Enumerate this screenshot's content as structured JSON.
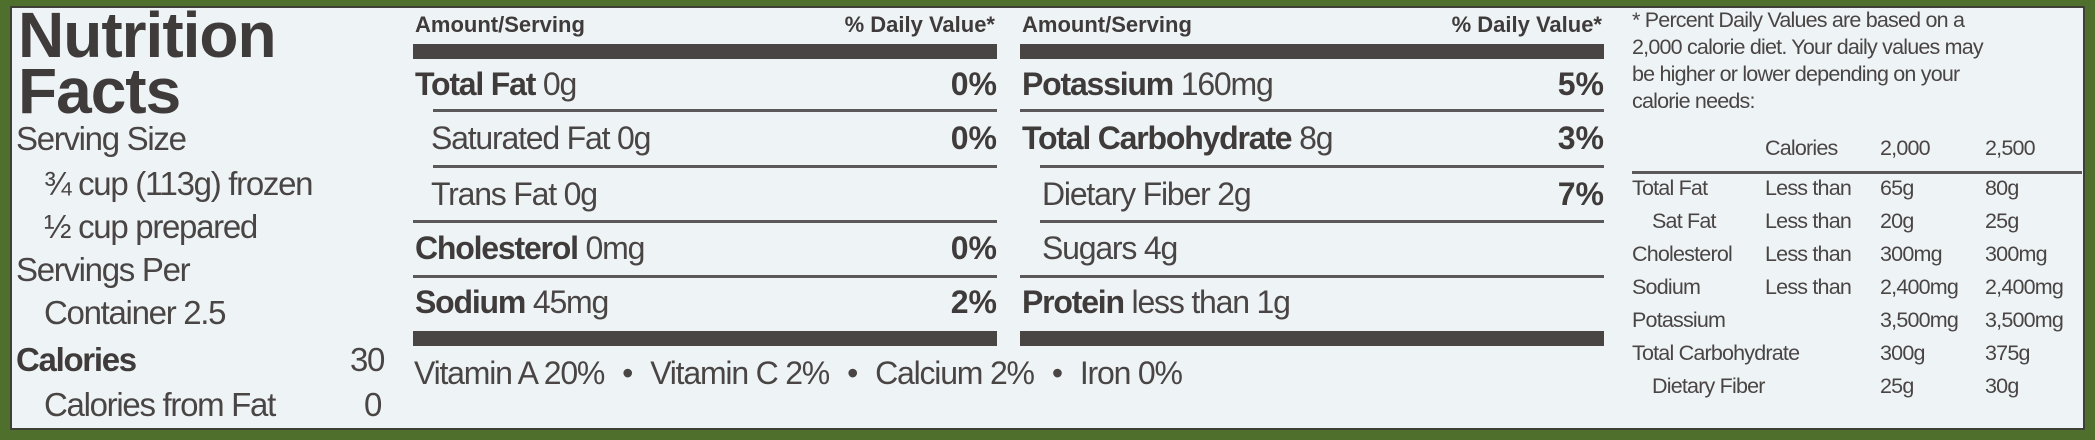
{
  "title": [
    "Nutrition",
    "Facts"
  ],
  "serving": {
    "size_label": "Serving Size",
    "size_line1": "¾ cup (113g) frozen",
    "size_line2": "½ cup prepared",
    "per_label": "Servings Per",
    "per_value": "Container 2.5",
    "calories_label": "Calories",
    "calories_value": "30",
    "fat_cal_label": "Calories from Fat",
    "fat_cal_value": "0"
  },
  "headers": {
    "amount": "Amount/Serving",
    "dv": "% Daily Value*"
  },
  "col1": [
    {
      "name": "Total Fat",
      "amount": "0g",
      "dv": "0%",
      "bold": true
    },
    {
      "name": "Saturated Fat",
      "amount": "0g",
      "dv": "0%",
      "bold": false
    },
    {
      "name": "Trans Fat",
      "amount": "0g",
      "dv": "",
      "bold": false
    },
    {
      "name": "Cholesterol",
      "amount": "0mg",
      "dv": "0%",
      "bold": true
    },
    {
      "name": "Sodium",
      "amount": "45mg",
      "dv": "2%",
      "bold": true
    }
  ],
  "col2": [
    {
      "name": "Potassium",
      "amount": "160mg",
      "dv": "5%",
      "bold": true
    },
    {
      "name": "Total Carbohydrate",
      "amount": "8g",
      "dv": "3%",
      "bold": true
    },
    {
      "name": "Dietary Fiber",
      "amount": "2g",
      "dv": "7%",
      "bold": false
    },
    {
      "name": "Sugars",
      "amount": "4g",
      "dv": "",
      "bold": false
    },
    {
      "name": "Protein",
      "amount": "less than 1g",
      "dv": "",
      "bold": true
    }
  ],
  "vitamins": [
    "Vitamin A 20%",
    "Vitamin C 2%",
    "Calcium 2%",
    "Iron 0%"
  ],
  "footnote": {
    "lines": [
      "* Percent Daily Values are based on a",
      "2,000 calorie diet. Your daily values may",
      "be higher or lower depending on your",
      "calorie needs:"
    ],
    "header": [
      "",
      "Calories",
      "2,000",
      "2,500"
    ],
    "rows": [
      [
        "Total Fat",
        "Less than",
        "65g",
        "80g"
      ],
      [
        " Sat Fat",
        "Less than",
        "20g",
        "25g"
      ],
      [
        "Cholesterol",
        "Less than",
        "300mg",
        "300mg"
      ],
      [
        "Sodium",
        "Less than",
        "2,400mg",
        "2,400mg"
      ],
      [
        "Potassium",
        "",
        "3,500mg",
        "3,500mg"
      ],
      [
        "Total Carbohydrate",
        "",
        "300g",
        "375g"
      ],
      [
        " Dietary Fiber",
        "",
        "25g",
        "30g"
      ]
    ]
  },
  "colors": {
    "border": "#4f6f2c",
    "background": "#eef3f5",
    "text": "#4a4545"
  }
}
